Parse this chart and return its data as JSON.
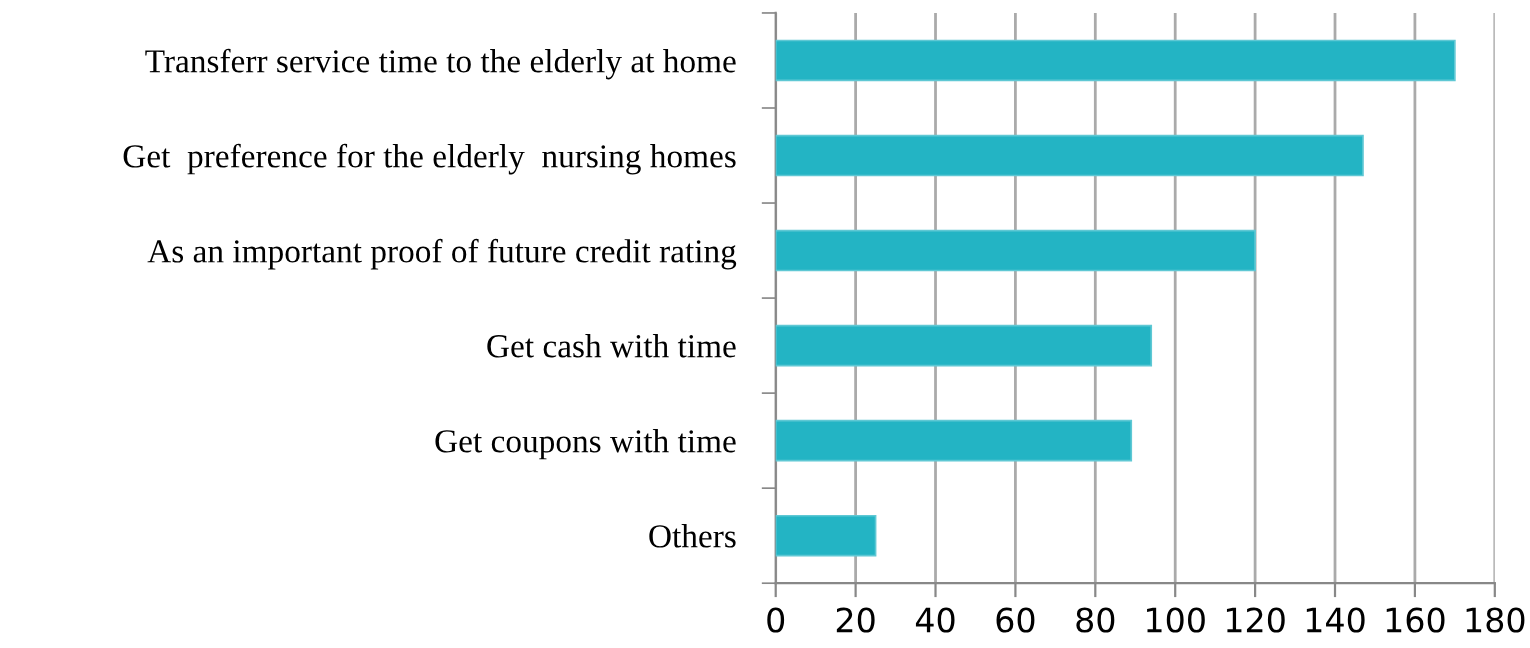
{
  "chart_data": {
    "type": "bar",
    "orientation": "horizontal",
    "categories": [
      "Transferr service time to the elderly at home",
      "Get  preference for the elderly  nursing homes",
      "As an important proof of future credit rating",
      "Get cash with time",
      "Get coupons with time",
      "Others"
    ],
    "values": [
      170,
      147,
      120,
      94,
      89,
      25
    ],
    "color": "#23b4c4",
    "xlim": [
      0,
      180
    ],
    "xticks": [
      0,
      20,
      40,
      60,
      80,
      100,
      120,
      140,
      160,
      180
    ],
    "grid": "x",
    "legend": false
  }
}
